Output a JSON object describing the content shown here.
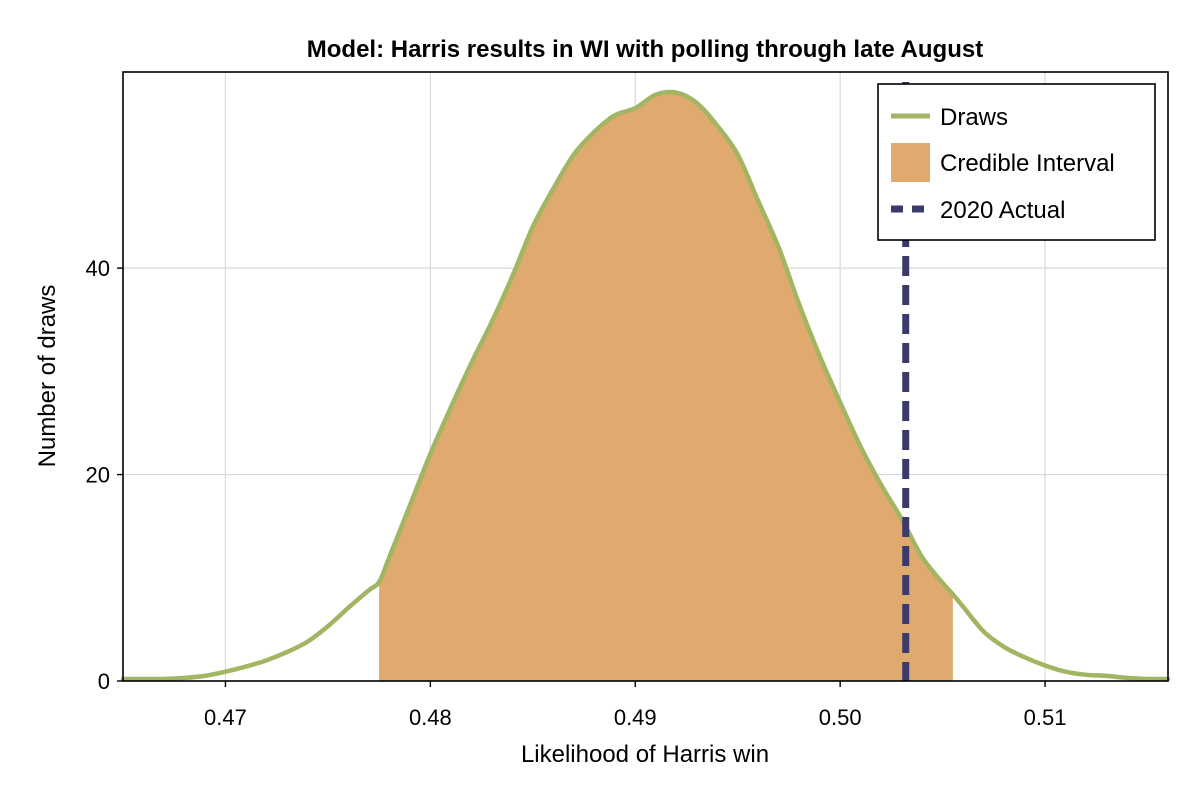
{
  "chart_data": {
    "type": "area",
    "title": "Model: Harris results in WI with polling through late August",
    "xlabel": "Likelihood of Harris win",
    "ylabel": "Number of draws",
    "xlim": [
      0.465,
      0.516
    ],
    "ylim": [
      0,
      59
    ],
    "xticks": [
      0.47,
      0.48,
      0.49,
      0.5,
      0.51
    ],
    "xtick_labels": [
      "0.47",
      "0.48",
      "0.49",
      "0.50",
      "0.51"
    ],
    "yticks": [
      0,
      20,
      40
    ],
    "ytick_labels": [
      "0",
      "20",
      "40"
    ],
    "grid": true,
    "legend_position": "top-right",
    "series": [
      {
        "name": "Draws",
        "kind": "line",
        "color": "#a2b562",
        "x": [
          0.465,
          0.466,
          0.467,
          0.468,
          0.469,
          0.47,
          0.471,
          0.472,
          0.473,
          0.474,
          0.475,
          0.476,
          0.477,
          0.4775,
          0.478,
          0.479,
          0.48,
          0.481,
          0.482,
          0.483,
          0.484,
          0.485,
          0.486,
          0.487,
          0.488,
          0.489,
          0.49,
          0.491,
          0.492,
          0.493,
          0.494,
          0.495,
          0.496,
          0.497,
          0.498,
          0.499,
          0.5,
          0.501,
          0.502,
          0.503,
          0.504,
          0.505,
          0.5055,
          0.506,
          0.507,
          0.508,
          0.509,
          0.51,
          0.511,
          0.512,
          0.513,
          0.514,
          0.515,
          0.516
        ],
        "y": [
          0.2,
          0.2,
          0.2,
          0.3,
          0.5,
          0.9,
          1.4,
          2.0,
          2.8,
          3.8,
          5.3,
          7.1,
          8.8,
          9.6,
          12.0,
          17.0,
          22.0,
          26.5,
          30.8,
          34.8,
          39.2,
          44.0,
          47.7,
          51.0,
          53.2,
          54.8,
          55.5,
          56.8,
          57.0,
          56.0,
          53.8,
          51.0,
          46.5,
          42.0,
          36.5,
          31.5,
          27.0,
          22.7,
          19.0,
          15.7,
          12.0,
          9.5,
          8.4,
          7.2,
          4.8,
          3.3,
          2.3,
          1.5,
          0.9,
          0.6,
          0.5,
          0.3,
          0.2,
          0.2
        ]
      },
      {
        "name": "Credible Interval",
        "kind": "band",
        "color": "#e0a96d",
        "x_range": [
          0.4775,
          0.5055
        ]
      },
      {
        "name": "2020 Actual",
        "kind": "vline",
        "color": "#3a3a6b",
        "x": 0.5032
      }
    ]
  }
}
